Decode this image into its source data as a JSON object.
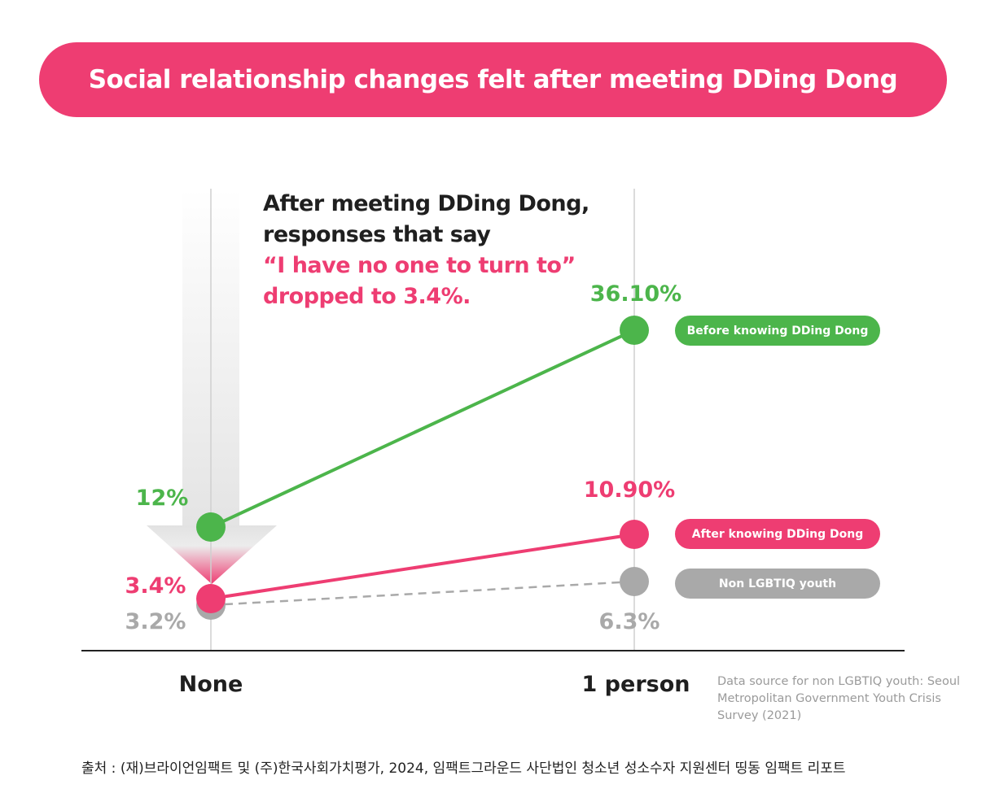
{
  "header": {
    "title": "Social relationship changes felt after meeting DDing Dong"
  },
  "callout": {
    "line1": "After meeting DDing Dong,",
    "line2": "responses that say",
    "line3": "“I have no one to turn to”",
    "line4": "dropped to 3.4%."
  },
  "chart_data": {
    "type": "line",
    "categories": [
      "None",
      "1 person"
    ],
    "series": [
      {
        "name": "Before knowing DDing Dong",
        "values": [
          12,
          36.1
        ],
        "labels": [
          "12%",
          "36.10%"
        ],
        "color": "#4cb54b",
        "style": "solid"
      },
      {
        "name": "After knowing DDing Dong",
        "values": [
          3.4,
          10.9
        ],
        "labels": [
          "3.4%",
          "10.90%"
        ],
        "color": "#ee3d72",
        "style": "solid"
      },
      {
        "name": "Non LGBTIQ youth",
        "values": [
          3.2,
          6.3
        ],
        "labels": [
          "3.2%",
          "6.3%"
        ],
        "color": "#a9a9a9",
        "style": "dashed"
      }
    ],
    "grid": false,
    "legend_position": "right"
  },
  "source_note": "Data source for non LGBTIQ youth: Seoul Metropolitan Government Youth Crisis Survey (2021)",
  "footer": "출처 : (재)브라이언임팩트 및 (주)한국사회가치평가, 2024, 임팩트그라운드 사단법인 청소년 성소수자 지원센터 띵동 임팩트 리포트"
}
